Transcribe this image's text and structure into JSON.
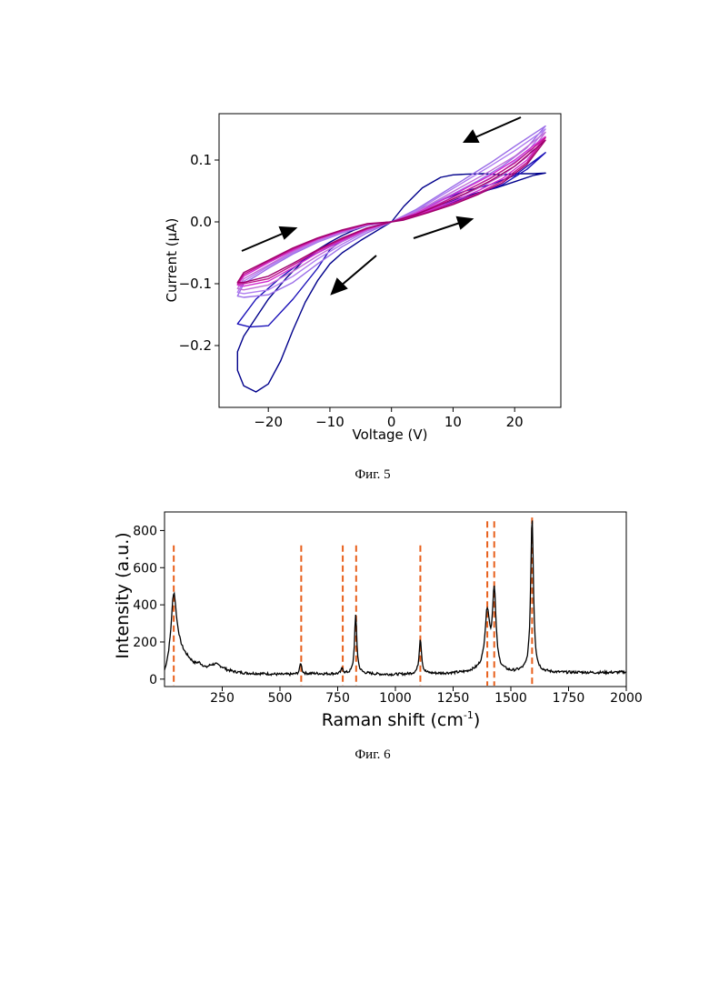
{
  "captions": {
    "fig5": "Фиг. 5",
    "fig6": "Фиг. 6"
  },
  "chart_data": [
    {
      "type": "line",
      "title": "",
      "xlabel": "Voltage (V)",
      "ylabel": "Current (μA)",
      "xlim": [
        -28,
        27.5
      ],
      "ylim": [
        -0.3,
        0.175
      ],
      "xticks": [
        -20,
        -10,
        0,
        10,
        20
      ],
      "xtick_labels": [
        "−20",
        "−10",
        "0",
        "10",
        "20"
      ],
      "yticks": [
        -0.2,
        -0.1,
        0.0,
        0.1
      ],
      "ytick_labels": [
        "−0.2",
        "−0.1",
        "0.0",
        "0.1"
      ],
      "grid": false,
      "series": [
        {
          "color": "#00008b",
          "x": [
            0,
            2,
            5,
            8,
            10,
            12,
            15,
            18,
            20,
            23,
            25,
            23,
            20,
            17,
            14,
            11,
            8,
            5,
            2,
            0,
            -2,
            -5,
            -8,
            -10,
            -12,
            -14,
            -16,
            -18,
            -20,
            -22,
            -24,
            -25,
            -25,
            -24,
            -22,
            -20,
            -17,
            -14,
            -12,
            -10,
            -8,
            -6,
            -4,
            -2,
            0
          ],
          "y": [
            0.0,
            0.025,
            0.055,
            0.072,
            0.076,
            0.077,
            0.078,
            0.076,
            0.078,
            0.078,
            0.079,
            0.075,
            0.065,
            0.055,
            0.047,
            0.038,
            0.028,
            0.018,
            0.008,
            0.0,
            -0.012,
            -0.03,
            -0.05,
            -0.068,
            -0.095,
            -0.13,
            -0.175,
            -0.225,
            -0.262,
            -0.275,
            -0.265,
            -0.24,
            -0.21,
            -0.185,
            -0.155,
            -0.125,
            -0.09,
            -0.06,
            -0.045,
            -0.033,
            -0.022,
            -0.013,
            -0.006,
            -0.002,
            0.0
          ]
        },
        {
          "color": "#1a10b8",
          "x": [
            0,
            4,
            8,
            12,
            16,
            20,
            25,
            22,
            18,
            14,
            10,
            6,
            2,
            0,
            -4,
            -8,
            -10,
            -12,
            -16,
            -20,
            -23,
            -25,
            -25,
            -22,
            -18,
            -14,
            -10,
            -6,
            -2,
            0
          ],
          "y": [
            0.0,
            0.018,
            0.035,
            0.05,
            0.06,
            0.075,
            0.112,
            0.085,
            0.06,
            0.045,
            0.032,
            0.018,
            0.006,
            0.0,
            -0.012,
            -0.03,
            -0.045,
            -0.075,
            -0.125,
            -0.168,
            -0.17,
            -0.165,
            -0.165,
            -0.125,
            -0.09,
            -0.06,
            -0.04,
            -0.022,
            -0.006,
            0.0
          ]
        },
        {
          "color": "#9b6ee8",
          "x": [
            0,
            4,
            8,
            12,
            16,
            20,
            25,
            22,
            18,
            14,
            10,
            6,
            2,
            0,
            -4,
            -8,
            -12,
            -16,
            -20,
            -24,
            -25,
            -24,
            -20,
            -16,
            -12,
            -8,
            -4,
            0
          ],
          "y": [
            0.0,
            0.02,
            0.045,
            0.07,
            0.095,
            0.122,
            0.155,
            0.12,
            0.09,
            0.066,
            0.045,
            0.026,
            0.008,
            0.0,
            -0.018,
            -0.04,
            -0.068,
            -0.098,
            -0.118,
            -0.122,
            -0.12,
            -0.1,
            -0.075,
            -0.052,
            -0.033,
            -0.018,
            -0.006,
            0.0
          ]
        },
        {
          "color": "#b07cf0",
          "x": [
            0,
            4,
            8,
            12,
            16,
            20,
            25,
            22,
            18,
            14,
            10,
            6,
            2,
            0,
            -4,
            -8,
            -12,
            -16,
            -20,
            -24,
            -25,
            -24,
            -20,
            -16,
            -12,
            -8,
            -4,
            0
          ],
          "y": [
            0.0,
            0.018,
            0.042,
            0.066,
            0.09,
            0.115,
            0.15,
            0.112,
            0.082,
            0.06,
            0.04,
            0.022,
            0.006,
            0.0,
            -0.015,
            -0.036,
            -0.06,
            -0.088,
            -0.11,
            -0.116,
            -0.114,
            -0.096,
            -0.072,
            -0.05,
            -0.032,
            -0.017,
            -0.005,
            0.0
          ]
        },
        {
          "color": "#c06fd8",
          "x": [
            0,
            4,
            8,
            12,
            16,
            20,
            25,
            22,
            18,
            14,
            10,
            6,
            2,
            0,
            -4,
            -8,
            -12,
            -16,
            -20,
            -24,
            -25,
            -24,
            -20,
            -16,
            -12,
            -8,
            -4,
            0
          ],
          "y": [
            0.0,
            0.016,
            0.038,
            0.06,
            0.082,
            0.106,
            0.145,
            0.105,
            0.075,
            0.054,
            0.036,
            0.02,
            0.005,
            0.0,
            -0.014,
            -0.032,
            -0.055,
            -0.08,
            -0.102,
            -0.11,
            -0.108,
            -0.092,
            -0.07,
            -0.048,
            -0.03,
            -0.016,
            -0.005,
            0.0
          ]
        },
        {
          "color": "#d22ad0",
          "x": [
            0,
            4,
            8,
            12,
            16,
            20,
            25,
            22,
            18,
            14,
            10,
            6,
            2,
            0,
            -4,
            -8,
            -12,
            -16,
            -20,
            -24,
            -25,
            -24,
            -20,
            -16,
            -12,
            -8,
            -4,
            0
          ],
          "y": [
            0.0,
            0.014,
            0.034,
            0.054,
            0.075,
            0.1,
            0.138,
            0.1,
            0.07,
            0.05,
            0.033,
            0.018,
            0.004,
            0.0,
            -0.012,
            -0.03,
            -0.05,
            -0.074,
            -0.096,
            -0.104,
            -0.102,
            -0.088,
            -0.066,
            -0.046,
            -0.028,
            -0.015,
            -0.004,
            0.0
          ]
        },
        {
          "color": "#c0148c",
          "x": [
            0,
            4,
            8,
            12,
            16,
            20,
            25,
            22,
            18,
            14,
            10,
            6,
            2,
            0,
            -4,
            -8,
            -12,
            -16,
            -20,
            -24,
            -25,
            -24,
            -20,
            -16,
            -12,
            -8,
            -4,
            0
          ],
          "y": [
            0.0,
            0.012,
            0.03,
            0.05,
            0.07,
            0.095,
            0.136,
            0.096,
            0.066,
            0.046,
            0.03,
            0.016,
            0.004,
            0.0,
            -0.011,
            -0.028,
            -0.047,
            -0.07,
            -0.092,
            -0.1,
            -0.1,
            -0.085,
            -0.064,
            -0.044,
            -0.027,
            -0.014,
            -0.004,
            0.0
          ]
        },
        {
          "color": "#a0006e",
          "x": [
            0,
            4,
            8,
            12,
            16,
            20,
            25,
            22,
            18,
            14,
            10,
            6,
            2,
            0,
            -4,
            -8,
            -12,
            -16,
            -20,
            -24,
            -25,
            -24,
            -20,
            -16,
            -12,
            -8,
            -4,
            0
          ],
          "y": [
            0.0,
            0.012,
            0.028,
            0.046,
            0.066,
            0.09,
            0.132,
            0.093,
            0.063,
            0.044,
            0.028,
            0.015,
            0.003,
            0.0,
            -0.01,
            -0.026,
            -0.045,
            -0.067,
            -0.088,
            -0.098,
            -0.098,
            -0.082,
            -0.062,
            -0.042,
            -0.026,
            -0.013,
            -0.003,
            0.0
          ]
        }
      ]
    },
    {
      "type": "line",
      "title": "",
      "xlabel": "Raman shift (cm",
      "xlabel_sup": "-1",
      "xlabel_end": ")",
      "ylabel": "Intensity (a.u.)",
      "xlim": [
        0,
        2000
      ],
      "ylim": [
        -40,
        900
      ],
      "xticks": [
        250,
        500,
        750,
        1000,
        1250,
        1500,
        1750,
        2000
      ],
      "xtick_labels": [
        "250",
        "500",
        "750",
        "1000",
        "1250",
        "1500",
        "1750",
        "2000"
      ],
      "yticks": [
        0,
        200,
        400,
        600,
        800
      ],
      "ytick_labels": [
        "0",
        "200",
        "400",
        "600",
        "800"
      ],
      "grid": false,
      "line_color": "#000000",
      "reference_color": "#e8601c",
      "reference_lines": [
        {
          "x": 40,
          "top": 720
        },
        {
          "x": 592,
          "top": 720
        },
        {
          "x": 772,
          "top": 720
        },
        {
          "x": 830,
          "top": 720
        },
        {
          "x": 1108,
          "top": 720
        },
        {
          "x": 1398,
          "top": 850
        },
        {
          "x": 1428,
          "top": 850
        },
        {
          "x": 1592,
          "top": 870
        }
      ],
      "baseline": [
        [
          0,
          10
        ],
        [
          20,
          60
        ],
        [
          60,
          150
        ],
        [
          90,
          120
        ],
        [
          110,
          100
        ],
        [
          130,
          80
        ],
        [
          150,
          85
        ],
        [
          180,
          60
        ],
        [
          200,
          75
        ],
        [
          220,
          80
        ],
        [
          250,
          65
        ],
        [
          270,
          50
        ],
        [
          300,
          40
        ],
        [
          350,
          32
        ],
        [
          400,
          30
        ],
        [
          450,
          28
        ],
        [
          500,
          25
        ],
        [
          550,
          25
        ],
        [
          600,
          28
        ],
        [
          650,
          30
        ],
        [
          700,
          28
        ],
        [
          750,
          28
        ],
        [
          800,
          28
        ],
        [
          850,
          30
        ],
        [
          900,
          28
        ],
        [
          950,
          25
        ],
        [
          1000,
          25
        ],
        [
          1050,
          26
        ],
        [
          1100,
          30
        ],
        [
          1150,
          30
        ],
        [
          1200,
          30
        ],
        [
          1250,
          32
        ],
        [
          1300,
          35
        ],
        [
          1350,
          45
        ],
        [
          1400,
          55
        ],
        [
          1450,
          40
        ],
        [
          1500,
          35
        ],
        [
          1550,
          40
        ],
        [
          1600,
          38
        ],
        [
          1650,
          36
        ],
        [
          1700,
          35
        ],
        [
          1750,
          35
        ],
        [
          1800,
          36
        ],
        [
          1850,
          35
        ],
        [
          1900,
          35
        ],
        [
          1950,
          36
        ],
        [
          2000,
          38
        ]
      ],
      "peaks": [
        {
          "x": 40,
          "height": 360,
          "width": 14
        },
        {
          "x": 590,
          "height": 60,
          "width": 5
        },
        {
          "x": 770,
          "height": 30,
          "width": 5
        },
        {
          "x": 828,
          "height": 310,
          "width": 6
        },
        {
          "x": 1108,
          "height": 190,
          "width": 6
        },
        {
          "x": 1398,
          "height": 300,
          "width": 12
        },
        {
          "x": 1428,
          "height": 420,
          "width": 9
        },
        {
          "x": 1592,
          "height": 835,
          "width": 7
        }
      ]
    }
  ]
}
